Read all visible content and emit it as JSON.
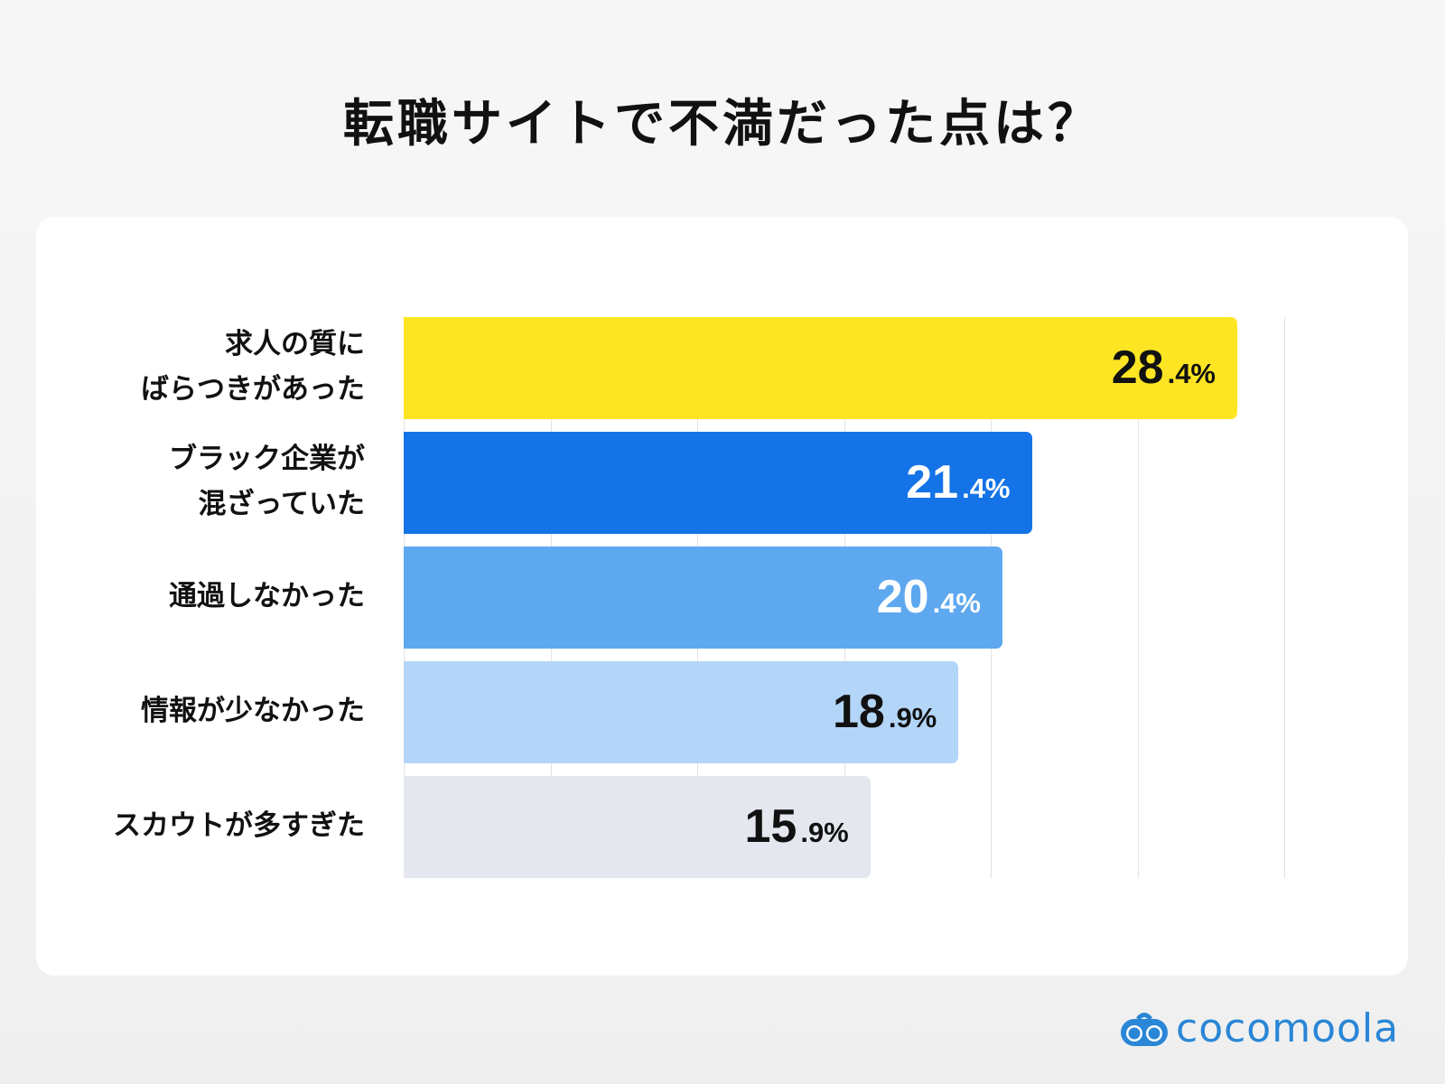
{
  "chart_data": {
    "type": "bar",
    "orientation": "horizontal",
    "title": "転職サイトで不満だった点は？",
    "categories": [
      "求人の質に\nばらつきがあった",
      "ブラック企業が\n混ざっていた",
      "通過しなかった",
      "情報が少なかった",
      "スカウトが多すぎた"
    ],
    "values": [
      28.4,
      21.4,
      20.4,
      18.9,
      15.9
    ],
    "value_labels": [
      {
        "int": "28",
        "dec": ".4%"
      },
      {
        "int": "21",
        "dec": ".4%"
      },
      {
        "int": "20",
        "dec": ".4%"
      },
      {
        "int": "18",
        "dec": ".9%"
      },
      {
        "int": "15",
        "dec": ".9%"
      }
    ],
    "colors": [
      "#FDE523",
      "#1473E6",
      "#5EA8F0",
      "#B3D5F8",
      "#E4E8EE"
    ],
    "text_colors": [
      "#111111",
      "#ffffff",
      "#ffffff",
      "#111111",
      "#111111"
    ],
    "xlim": [
      0,
      30
    ],
    "grid_step": 5,
    "grid": true,
    "xlabel": "",
    "ylabel": ""
  },
  "brand": {
    "name": "cocomoola",
    "color": "#2A86D6"
  }
}
